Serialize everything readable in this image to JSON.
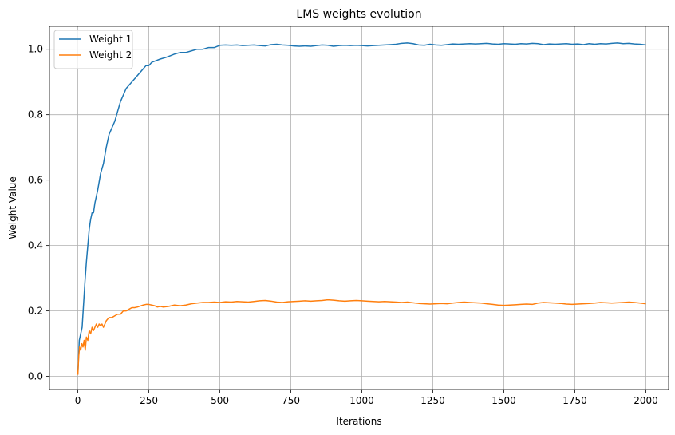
{
  "chart_data": {
    "type": "line",
    "title": "LMS weights evolution",
    "xlabel": "Iterations",
    "ylabel": "Weight Value",
    "xlim": [
      -100,
      2080
    ],
    "ylim": [
      -0.04,
      1.07
    ],
    "xticks": [
      0,
      250,
      500,
      750,
      1000,
      1250,
      1500,
      1750,
      2000
    ],
    "yticks": [
      0.0,
      0.2,
      0.4,
      0.6,
      0.8,
      1.0
    ],
    "xtick_labels": [
      "0",
      "250",
      "500",
      "750",
      "1000",
      "1250",
      "1500",
      "1750",
      "2000"
    ],
    "ytick_labels": [
      "0.0",
      "0.2",
      "0.4",
      "0.6",
      "0.8",
      "1.0"
    ],
    "grid": true,
    "legend_position": "top-left",
    "series": [
      {
        "name": "Weight 1",
        "color": "#1f77b4",
        "points": [
          [
            0,
            0.01
          ],
          [
            5,
            0.11
          ],
          [
            10,
            0.13
          ],
          [
            15,
            0.15
          ],
          [
            20,
            0.22
          ],
          [
            25,
            0.29
          ],
          [
            30,
            0.35
          ],
          [
            35,
            0.4
          ],
          [
            40,
            0.45
          ],
          [
            45,
            0.48
          ],
          [
            50,
            0.5
          ],
          [
            55,
            0.5
          ],
          [
            60,
            0.53
          ],
          [
            70,
            0.57
          ],
          [
            80,
            0.62
          ],
          [
            90,
            0.65
          ],
          [
            100,
            0.7
          ],
          [
            110,
            0.74
          ],
          [
            120,
            0.76
          ],
          [
            130,
            0.78
          ],
          [
            140,
            0.81
          ],
          [
            150,
            0.84
          ],
          [
            160,
            0.86
          ],
          [
            170,
            0.88
          ],
          [
            180,
            0.89
          ],
          [
            190,
            0.9
          ],
          [
            200,
            0.91
          ],
          [
            210,
            0.92
          ],
          [
            220,
            0.93
          ],
          [
            230,
            0.94
          ],
          [
            240,
            0.95
          ],
          [
            250,
            0.95
          ],
          [
            260,
            0.96
          ],
          [
            275,
            0.965
          ],
          [
            290,
            0.97
          ],
          [
            310,
            0.975
          ],
          [
            325,
            0.98
          ],
          [
            340,
            0.985
          ],
          [
            360,
            0.99
          ],
          [
            380,
            0.99
          ],
          [
            400,
            0.995
          ],
          [
            420,
            1.0
          ],
          [
            440,
            1.0
          ],
          [
            460,
            1.005
          ],
          [
            480,
            1.005
          ],
          [
            500,
            1.012
          ],
          [
            520,
            1.013
          ],
          [
            540,
            1.012
          ],
          [
            560,
            1.013
          ],
          [
            580,
            1.011
          ],
          [
            600,
            1.012
          ],
          [
            620,
            1.013
          ],
          [
            640,
            1.011
          ],
          [
            660,
            1.01
          ],
          [
            680,
            1.014
          ],
          [
            700,
            1.015
          ],
          [
            720,
            1.013
          ],
          [
            740,
            1.012
          ],
          [
            760,
            1.01
          ],
          [
            780,
            1.009
          ],
          [
            800,
            1.01
          ],
          [
            820,
            1.009
          ],
          [
            840,
            1.011
          ],
          [
            860,
            1.013
          ],
          [
            880,
            1.012
          ],
          [
            900,
            1.009
          ],
          [
            920,
            1.011
          ],
          [
            940,
            1.012
          ],
          [
            960,
            1.011
          ],
          [
            980,
            1.012
          ],
          [
            1000,
            1.011
          ],
          [
            1020,
            1.01
          ],
          [
            1040,
            1.011
          ],
          [
            1060,
            1.012
          ],
          [
            1080,
            1.013
          ],
          [
            1100,
            1.014
          ],
          [
            1120,
            1.015
          ],
          [
            1140,
            1.018
          ],
          [
            1160,
            1.019
          ],
          [
            1180,
            1.017
          ],
          [
            1200,
            1.013
          ],
          [
            1220,
            1.012
          ],
          [
            1240,
            1.015
          ],
          [
            1260,
            1.013
          ],
          [
            1280,
            1.012
          ],
          [
            1300,
            1.014
          ],
          [
            1320,
            1.016
          ],
          [
            1340,
            1.015
          ],
          [
            1360,
            1.016
          ],
          [
            1380,
            1.017
          ],
          [
            1400,
            1.016
          ],
          [
            1420,
            1.017
          ],
          [
            1440,
            1.018
          ],
          [
            1460,
            1.016
          ],
          [
            1480,
            1.015
          ],
          [
            1500,
            1.017
          ],
          [
            1520,
            1.016
          ],
          [
            1540,
            1.015
          ],
          [
            1560,
            1.017
          ],
          [
            1580,
            1.016
          ],
          [
            1600,
            1.018
          ],
          [
            1620,
            1.017
          ],
          [
            1640,
            1.014
          ],
          [
            1660,
            1.016
          ],
          [
            1680,
            1.015
          ],
          [
            1700,
            1.016
          ],
          [
            1720,
            1.017
          ],
          [
            1740,
            1.015
          ],
          [
            1760,
            1.016
          ],
          [
            1780,
            1.014
          ],
          [
            1800,
            1.017
          ],
          [
            1820,
            1.015
          ],
          [
            1840,
            1.017
          ],
          [
            1860,
            1.016
          ],
          [
            1880,
            1.018
          ],
          [
            1900,
            1.019
          ],
          [
            1920,
            1.017
          ],
          [
            1940,
            1.018
          ],
          [
            1960,
            1.016
          ],
          [
            1980,
            1.015
          ],
          [
            2000,
            1.013
          ]
        ]
      },
      {
        "name": "Weight 2",
        "color": "#ff7f0e",
        "points": [
          [
            0,
            0.005
          ],
          [
            3,
            0.06
          ],
          [
            6,
            0.09
          ],
          [
            10,
            0.08
          ],
          [
            14,
            0.1
          ],
          [
            18,
            0.09
          ],
          [
            22,
            0.11
          ],
          [
            26,
            0.08
          ],
          [
            30,
            0.12
          ],
          [
            35,
            0.11
          ],
          [
            40,
            0.14
          ],
          [
            45,
            0.13
          ],
          [
            50,
            0.15
          ],
          [
            55,
            0.14
          ],
          [
            60,
            0.15
          ],
          [
            65,
            0.16
          ],
          [
            70,
            0.15
          ],
          [
            75,
            0.16
          ],
          [
            80,
            0.155
          ],
          [
            85,
            0.16
          ],
          [
            90,
            0.15
          ],
          [
            95,
            0.16
          ],
          [
            100,
            0.17
          ],
          [
            110,
            0.18
          ],
          [
            120,
            0.18
          ],
          [
            130,
            0.185
          ],
          [
            140,
            0.19
          ],
          [
            150,
            0.19
          ],
          [
            160,
            0.2
          ],
          [
            170,
            0.2
          ],
          [
            180,
            0.205
          ],
          [
            190,
            0.21
          ],
          [
            200,
            0.21
          ],
          [
            210,
            0.212
          ],
          [
            220,
            0.215
          ],
          [
            230,
            0.218
          ],
          [
            240,
            0.22
          ],
          [
            250,
            0.22
          ],
          [
            260,
            0.218
          ],
          [
            270,
            0.216
          ],
          [
            280,
            0.212
          ],
          [
            290,
            0.214
          ],
          [
            300,
            0.212
          ],
          [
            320,
            0.214
          ],
          [
            340,
            0.218
          ],
          [
            360,
            0.216
          ],
          [
            380,
            0.218
          ],
          [
            400,
            0.222
          ],
          [
            420,
            0.224
          ],
          [
            440,
            0.226
          ],
          [
            460,
            0.226
          ],
          [
            480,
            0.227
          ],
          [
            500,
            0.226
          ],
          [
            520,
            0.228
          ],
          [
            540,
            0.227
          ],
          [
            560,
            0.229
          ],
          [
            580,
            0.228
          ],
          [
            600,
            0.227
          ],
          [
            620,
            0.229
          ],
          [
            640,
            0.231
          ],
          [
            660,
            0.232
          ],
          [
            680,
            0.23
          ],
          [
            700,
            0.227
          ],
          [
            720,
            0.226
          ],
          [
            740,
            0.228
          ],
          [
            760,
            0.229
          ],
          [
            780,
            0.23
          ],
          [
            800,
            0.231
          ],
          [
            820,
            0.23
          ],
          [
            840,
            0.231
          ],
          [
            860,
            0.232
          ],
          [
            880,
            0.234
          ],
          [
            900,
            0.233
          ],
          [
            920,
            0.231
          ],
          [
            940,
            0.23
          ],
          [
            960,
            0.231
          ],
          [
            980,
            0.232
          ],
          [
            1000,
            0.231
          ],
          [
            1020,
            0.23
          ],
          [
            1040,
            0.229
          ],
          [
            1060,
            0.228
          ],
          [
            1080,
            0.229
          ],
          [
            1100,
            0.228
          ],
          [
            1120,
            0.227
          ],
          [
            1140,
            0.226
          ],
          [
            1160,
            0.227
          ],
          [
            1180,
            0.225
          ],
          [
            1200,
            0.223
          ],
          [
            1220,
            0.222
          ],
          [
            1240,
            0.221
          ],
          [
            1260,
            0.222
          ],
          [
            1280,
            0.223
          ],
          [
            1300,
            0.222
          ],
          [
            1320,
            0.224
          ],
          [
            1340,
            0.226
          ],
          [
            1360,
            0.227
          ],
          [
            1380,
            0.226
          ],
          [
            1400,
            0.225
          ],
          [
            1420,
            0.224
          ],
          [
            1440,
            0.222
          ],
          [
            1460,
            0.22
          ],
          [
            1480,
            0.218
          ],
          [
            1500,
            0.217
          ],
          [
            1520,
            0.218
          ],
          [
            1540,
            0.219
          ],
          [
            1560,
            0.22
          ],
          [
            1580,
            0.221
          ],
          [
            1600,
            0.22
          ],
          [
            1620,
            0.224
          ],
          [
            1640,
            0.226
          ],
          [
            1660,
            0.225
          ],
          [
            1680,
            0.224
          ],
          [
            1700,
            0.223
          ],
          [
            1720,
            0.221
          ],
          [
            1740,
            0.22
          ],
          [
            1760,
            0.221
          ],
          [
            1780,
            0.222
          ],
          [
            1800,
            0.223
          ],
          [
            1820,
            0.224
          ],
          [
            1840,
            0.226
          ],
          [
            1860,
            0.225
          ],
          [
            1880,
            0.224
          ],
          [
            1900,
            0.225
          ],
          [
            1920,
            0.226
          ],
          [
            1940,
            0.227
          ],
          [
            1960,
            0.226
          ],
          [
            1980,
            0.224
          ],
          [
            2000,
            0.222
          ]
        ]
      }
    ]
  }
}
